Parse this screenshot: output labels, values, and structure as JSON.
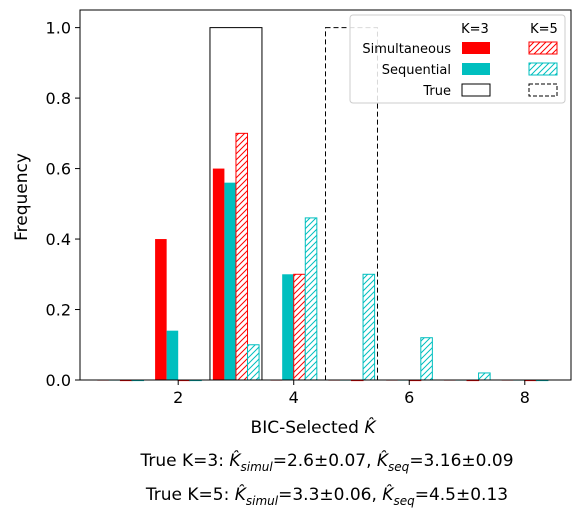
{
  "chart_data": {
    "type": "bar",
    "xlabel": "BIC-Selected K̂",
    "ylabel": "Frequency",
    "xlim": [
      0.3,
      8.8
    ],
    "ylim": [
      0,
      1.05
    ],
    "xticks": [
      2,
      4,
      6,
      8
    ],
    "yticks": [
      0.0,
      0.2,
      0.4,
      0.6,
      0.8,
      1.0
    ],
    "bar_width": 0.2,
    "series": [
      {
        "name": "Simultaneous",
        "group": "K=3",
        "style": "solid",
        "color": "#ff0000",
        "offset": -0.3,
        "x": [
          1,
          2,
          3,
          4,
          5,
          6,
          7,
          8
        ],
        "values": [
          0.0,
          0.4,
          0.6,
          0.0,
          0.0,
          0.0,
          0.0,
          0.0
        ]
      },
      {
        "name": "Sequential",
        "group": "K=3",
        "style": "solid",
        "color": "#00bfbf",
        "offset": -0.1,
        "x": [
          1,
          2,
          3,
          4,
          5,
          6,
          7,
          8
        ],
        "values": [
          0.0,
          0.14,
          0.56,
          0.3,
          0.0,
          0.0,
          0.0,
          0.0
        ]
      },
      {
        "name": "Simultaneous",
        "group": "K=5",
        "style": "hatch",
        "color": "#ff0000",
        "offset": 0.1,
        "x": [
          1,
          2,
          3,
          4,
          5,
          6,
          7,
          8
        ],
        "values": [
          0.0,
          0.0,
          0.7,
          0.3,
          0.0,
          0.0,
          0.0,
          0.0
        ]
      },
      {
        "name": "Sequential",
        "group": "K=5",
        "style": "hatch",
        "color": "#00bfbf",
        "offset": 0.3,
        "x": [
          1,
          2,
          3,
          4,
          5,
          6,
          7,
          8
        ],
        "values": [
          0.0,
          0.0,
          0.1,
          0.46,
          0.3,
          0.12,
          0.02,
          0.0
        ]
      }
    ],
    "true_bars": [
      {
        "name": "True",
        "group": "K=3",
        "style": "solid-outline",
        "x": 3,
        "value": 1.0,
        "width": 0.9
      },
      {
        "name": "True",
        "group": "K=5",
        "style": "dashed-outline",
        "x": 5,
        "value": 1.0,
        "width": 0.9
      }
    ],
    "legend": {
      "placement": "top-right",
      "columns": [
        "K=3",
        "K=5"
      ],
      "rows": [
        "Simultaneous",
        "Sequential",
        "True"
      ]
    },
    "caption": [
      {
        "prefix": "True K=3: ",
        "simul": "2.6±0.07",
        "seq": "3.16±0.09"
      },
      {
        "prefix": "True K=5: ",
        "simul": "3.3±0.06",
        "seq": "4.5±0.13"
      }
    ]
  }
}
